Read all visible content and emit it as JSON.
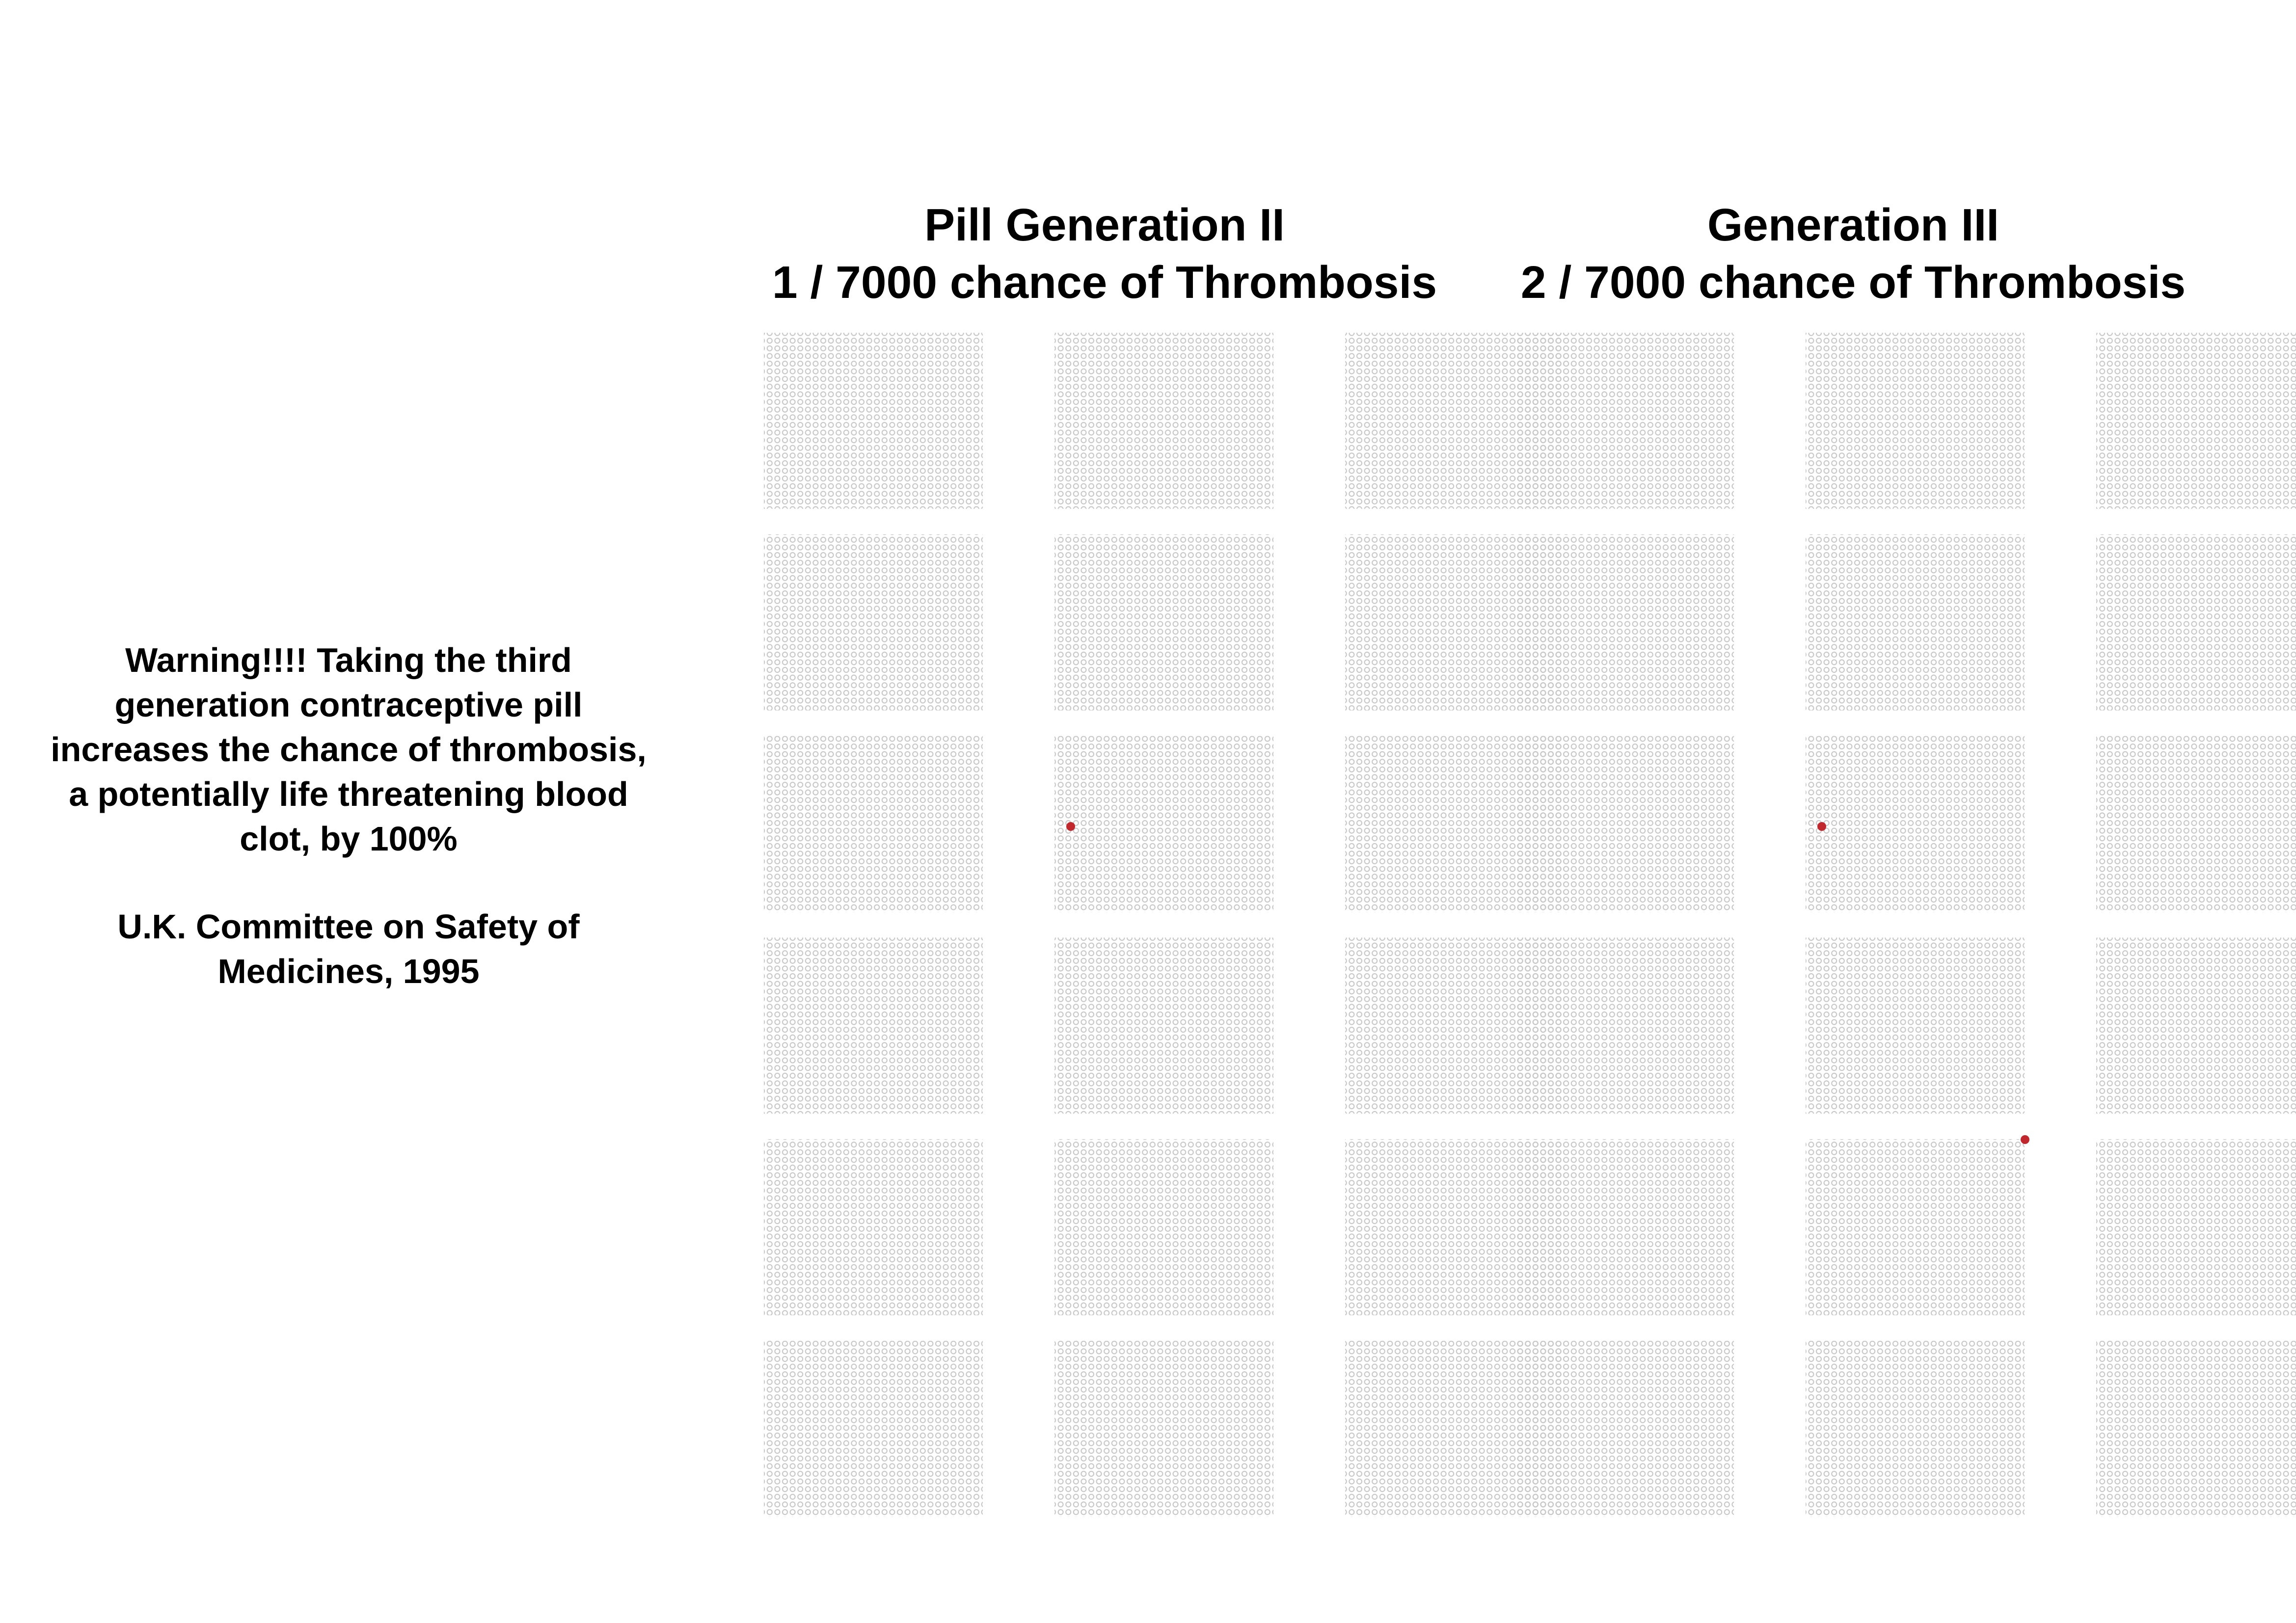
{
  "warning": {
    "text": "Warning!!!! Taking the third generation contraceptive pill increases the chance of thrombosis, a potentially life threatening blood clot, by 100%",
    "source": "U.K. Committee on Safety of Medicines, 1995"
  },
  "chart_data": [
    {
      "type": "icon-array",
      "title": "Pill Generation II",
      "subtitle": "1 / 7000 chance of Thrombosis",
      "total": 7000,
      "highlighted": 1,
      "colors": {
        "base": "#c8c8c8",
        "highlight": "#c0282d"
      }
    },
    {
      "type": "icon-array",
      "title": "Generation III",
      "subtitle": "2 / 7000 chance of Thrombosis",
      "total": 7000,
      "highlighted": 2,
      "colors": {
        "base": "#c8c8c8",
        "highlight": "#c0282d"
      }
    }
  ]
}
